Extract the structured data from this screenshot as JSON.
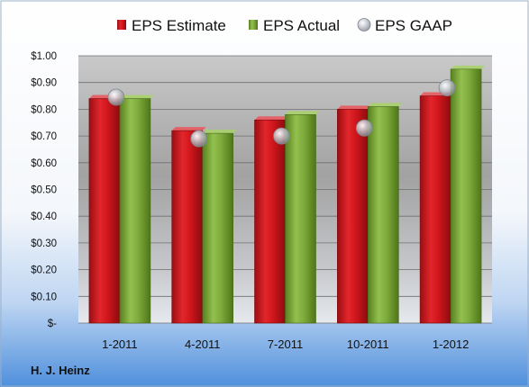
{
  "chart_data": {
    "type": "bar",
    "categories": [
      "1-2011",
      "4-2011",
      "7-2011",
      "10-2011",
      "1-2012"
    ],
    "series": [
      {
        "name": "EPS Estimate",
        "kind": "bar",
        "color": "#c8161d",
        "values": [
          0.84,
          0.72,
          0.76,
          0.8,
          0.85
        ]
      },
      {
        "name": "EPS Actual",
        "kind": "bar",
        "color": "#77a33a",
        "values": [
          0.84,
          0.71,
          0.78,
          0.81,
          0.95
        ]
      },
      {
        "name": "EPS GAAP",
        "kind": "marker",
        "color": "#b8bcc2",
        "values": [
          0.845,
          0.69,
          0.7,
          0.73,
          0.88
        ]
      }
    ],
    "ylim": [
      0,
      1.0
    ],
    "yticks": [
      0,
      0.1,
      0.2,
      0.3,
      0.4,
      0.5,
      0.6,
      0.7,
      0.8,
      0.9,
      1.0
    ],
    "ytick_labels": [
      "$-",
      "$0.10",
      "$0.20",
      "$0.30",
      "$0.40",
      "$0.50",
      "$0.60",
      "$0.70",
      "$0.80",
      "$0.90",
      "$1.00"
    ],
    "grid": true,
    "legend_position": "top",
    "company": "H. J. Heinz"
  }
}
